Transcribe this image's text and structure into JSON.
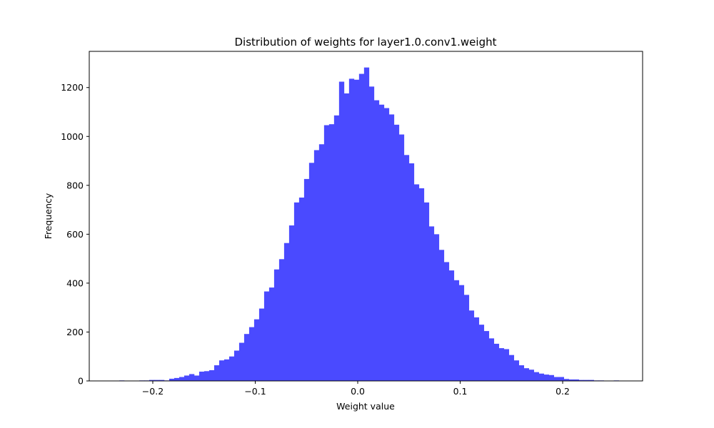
{
  "chart_data": {
    "type": "bar",
    "title": "Distribution of weights for layer1.0.conv1.weight",
    "xlabel": "Weight value",
    "ylabel": "Frequency",
    "xlim": [
      -0.262,
      0.278
    ],
    "ylim": [
      0,
      1348
    ],
    "xticks": [
      -0.2,
      -0.1,
      0.0,
      0.1,
      0.2
    ],
    "xtick_labels": [
      "−0.2",
      "−0.1",
      "0.0",
      "0.1",
      "0.2"
    ],
    "yticks": [
      0,
      200,
      400,
      600,
      800,
      1000,
      1200
    ],
    "ytick_labels": [
      "0",
      "200",
      "400",
      "600",
      "800",
      "1000",
      "1200"
    ],
    "bin_start": -0.2376,
    "bin_width": 0.004875,
    "counts": [
      0,
      2,
      0,
      0,
      0,
      2,
      2,
      4,
      4,
      4,
      2,
      9,
      12,
      16,
      22,
      28,
      22,
      38,
      40,
      44,
      64,
      84,
      88,
      100,
      124,
      156,
      192,
      220,
      252,
      296,
      366,
      382,
      456,
      498,
      564,
      636,
      730,
      750,
      826,
      892,
      944,
      968,
      1046,
      1050,
      1086,
      1224,
      1176,
      1236,
      1232,
      1256,
      1282,
      1204,
      1148,
      1130,
      1116,
      1090,
      1048,
      1008,
      924,
      890,
      804,
      788,
      730,
      632,
      600,
      536,
      486,
      452,
      412,
      392,
      352,
      288,
      260,
      230,
      204,
      174,
      152,
      134,
      130,
      106,
      84,
      64,
      52,
      46,
      36,
      30,
      26,
      24,
      16,
      16,
      8,
      6,
      6,
      4,
      4,
      4,
      2,
      2,
      0,
      0,
      2,
      0,
      0,
      0,
      0,
      0,
      0,
      0,
      0,
      0,
      0
    ]
  },
  "colors": {
    "bar": "#4a4aff",
    "axis": "#000000",
    "background": "#ffffff"
  }
}
